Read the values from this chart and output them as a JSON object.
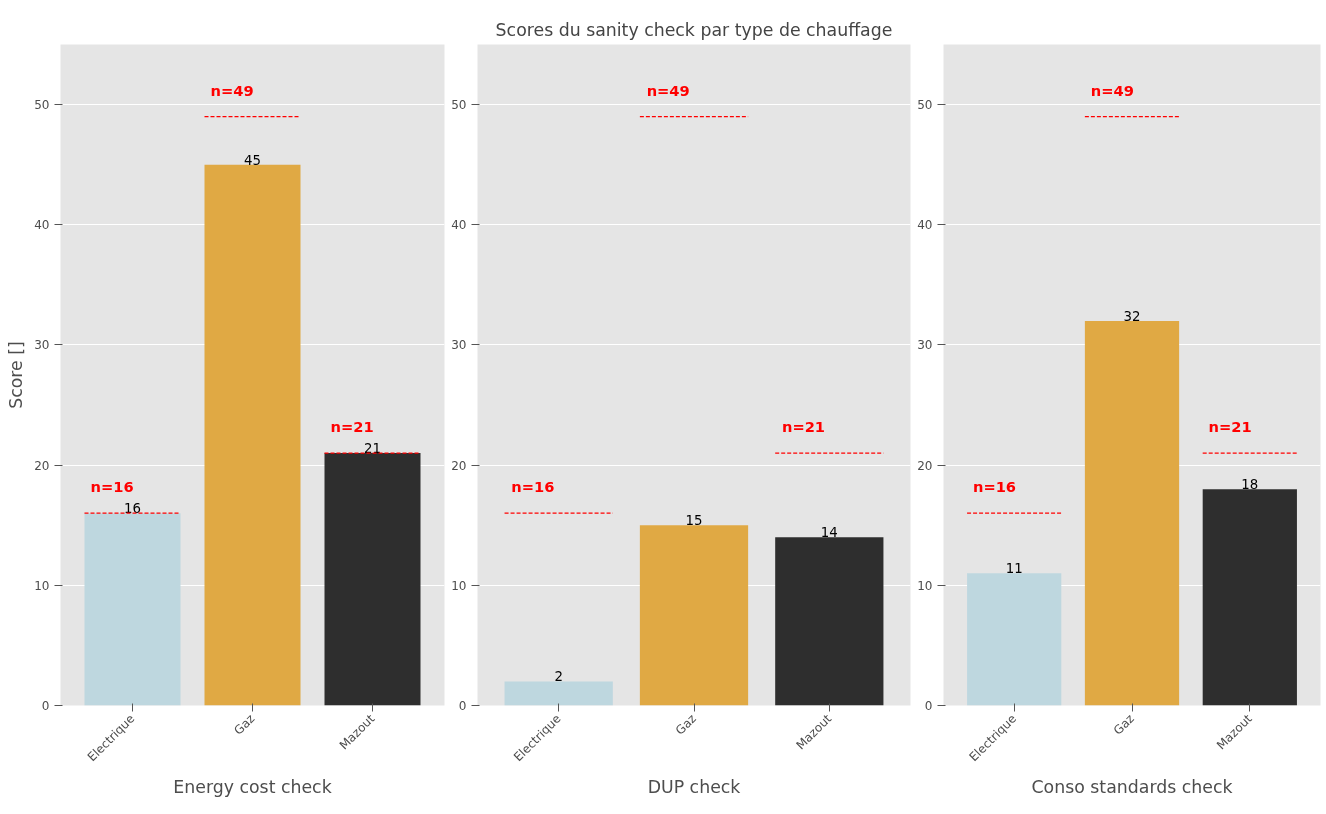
{
  "chart_data": [
    {
      "type": "bar",
      "xlabel": "Energy cost check",
      "ylabel": "Score []",
      "categories": [
        "Electrique",
        "Gaz",
        "Mazout"
      ],
      "values": [
        16,
        45,
        21
      ],
      "colors": [
        "#bed7df",
        "#e0a944",
        "#2e2e2e"
      ],
      "ylim": [
        0,
        55
      ],
      "yticks": [
        0,
        10,
        20,
        30,
        40,
        50
      ],
      "grid": "y",
      "data_labels": true,
      "ref_lines": [
        {
          "axis": "y",
          "value": 16,
          "label": "n=16",
          "color": "#ff0000",
          "line_style": "dashed"
        },
        {
          "axis": "y",
          "value": 49,
          "label": "n=49",
          "color": "#ff0000",
          "line_style": "dashed"
        },
        {
          "axis": "y",
          "value": 21,
          "label": "n=21",
          "color": "#ff0000",
          "line_style": "dashed"
        }
      ]
    },
    {
      "type": "bar",
      "title": "Scores du sanity check par type de chauffage",
      "xlabel": "DUP check",
      "categories": [
        "Electrique",
        "Gaz",
        "Mazout"
      ],
      "values": [
        2,
        15,
        14
      ],
      "colors": [
        "#bed7df",
        "#e0a944",
        "#2e2e2e"
      ],
      "ylim": [
        0,
        55
      ],
      "yticks": [
        0,
        10,
        20,
        30,
        40,
        50
      ],
      "grid": "y",
      "data_labels": true,
      "ref_lines": [
        {
          "axis": "y",
          "value": 16,
          "label": "n=16",
          "color": "#ff0000",
          "line_style": "dashed"
        },
        {
          "axis": "y",
          "value": 49,
          "label": "n=49",
          "color": "#ff0000",
          "line_style": "dashed"
        },
        {
          "axis": "y",
          "value": 21,
          "label": "n=21",
          "color": "#ff0000",
          "line_style": "dashed"
        }
      ]
    },
    {
      "type": "bar",
      "xlabel": "Conso standards check",
      "categories": [
        "Electrique",
        "Gaz",
        "Mazout"
      ],
      "values": [
        11,
        32,
        18
      ],
      "colors": [
        "#bed7df",
        "#e0a944",
        "#2e2e2e"
      ],
      "ylim": [
        0,
        55
      ],
      "yticks": [
        0,
        10,
        20,
        30,
        40,
        50
      ],
      "grid": "y",
      "data_labels": true,
      "ref_lines": [
        {
          "axis": "y",
          "value": 16,
          "label": "n=16",
          "color": "#ff0000",
          "line_style": "dashed"
        },
        {
          "axis": "y",
          "value": 49,
          "label": "n=49",
          "color": "#ff0000",
          "line_style": "dashed"
        },
        {
          "axis": "y",
          "value": 21,
          "label": "n=21",
          "color": "#ff0000",
          "line_style": "dashed"
        }
      ]
    }
  ]
}
